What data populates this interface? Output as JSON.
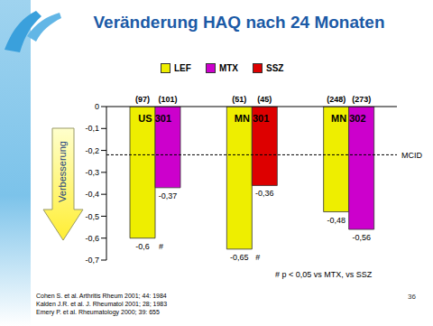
{
  "chart_data": {
    "type": "bar",
    "title": "Veränderung HAQ nach 24 Monaten",
    "categories": [
      "US 301",
      "MN 301",
      "MN 302"
    ],
    "series": [
      {
        "name": "LEF",
        "color": "#eeee00",
        "values": [
          -0.6,
          -0.65,
          -0.48
        ],
        "value_labels": [
          "-0,6",
          "-0,65",
          "-0,48"
        ],
        "n_labels": [
          "(97)",
          "(51)",
          "(248)"
        ],
        "significance_labels": [
          "#",
          "#",
          null
        ]
      },
      {
        "name": "MTX",
        "color": "#cc00cc",
        "values": [
          -0.37,
          null,
          -0.56
        ],
        "value_labels": [
          "-0,37",
          null,
          "-0,56"
        ],
        "n_labels": [
          "(101)",
          null,
          "(273)"
        ]
      },
      {
        "name": "SSZ",
        "color": "#dd0000",
        "values": [
          null,
          -0.36,
          null
        ],
        "value_labels": [
          null,
          "-0,36",
          null
        ],
        "n_labels": [
          null,
          "(45)",
          null
        ]
      }
    ],
    "ylim": [
      -0.7,
      0
    ],
    "yticks": [
      0,
      {
        "value": -0.1,
        "label": "-0,1"
      },
      {
        "value": -0.2,
        "label": "-0,2"
      },
      {
        "value": -0.3,
        "label": "-0,3"
      },
      {
        "value": -0.4,
        "label": "-0,4"
      },
      {
        "value": -0.5,
        "label": "-0,5"
      },
      {
        "value": -0.6,
        "label": "-0,6"
      },
      {
        "value": -0.7,
        "label": "-0,7"
      }
    ],
    "reference_line": {
      "value": -0.22,
      "label": "MCID",
      "line_style": "dashed"
    },
    "arrow_label": "Verbesserung",
    "footnote": "# p < 0,05 vs MTX, vs SSZ",
    "references": [
      "Cohen S. et al. Arthritis Rheum 2001; 44: 1984",
      "Kalden J.R. et al. J. Rheumatol 2001; 28; 1983",
      "Emery P. et al. Rheumatology 2000; 39: 655"
    ],
    "page": 36,
    "data_labels": true,
    "grid": false,
    "legend": "top"
  }
}
